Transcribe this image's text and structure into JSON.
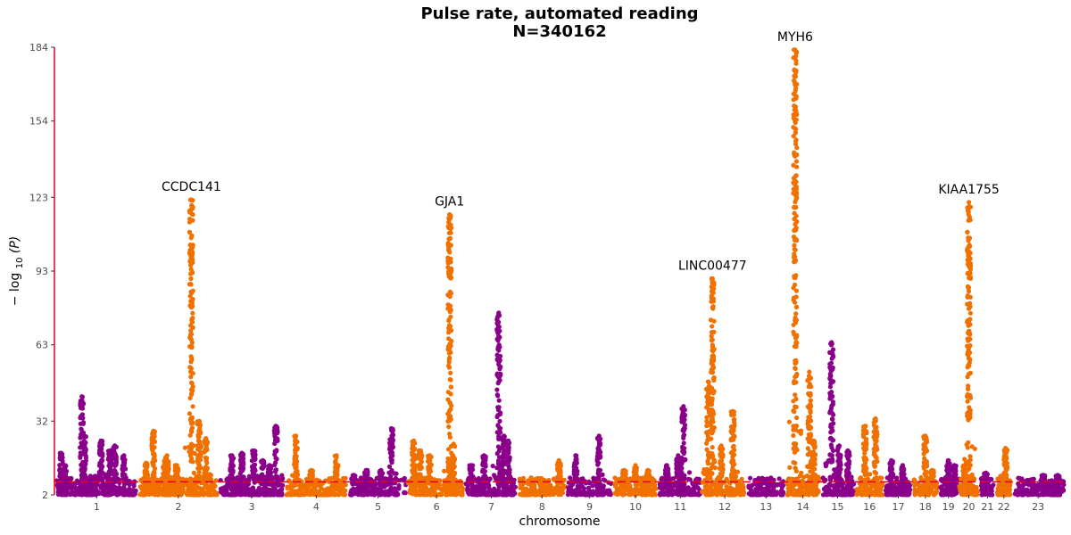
{
  "chart_data": {
    "type": "scatter",
    "subtype": "manhattan",
    "title": "Pulse rate, automated reading",
    "subtitle": "N=340162",
    "xlabel": "chromosome",
    "ylabel_main": "− log",
    "ylabel_sub": "10",
    "ylabel_arg": "(P)",
    "ylim": [
      2,
      184
    ],
    "yticks": [
      2,
      32,
      63,
      93,
      123,
      154,
      184
    ],
    "significance_threshold": 7.3,
    "colors": {
      "odd": "#8B008B",
      "even": "#F07000",
      "threshold": "#E8001C",
      "axis": "#E8001C"
    },
    "chromosomes": [
      {
        "label": "1",
        "length": 249,
        "peaks": [
          [
            0.07,
            19
          ],
          [
            0.12,
            14
          ],
          [
            0.32,
            42
          ],
          [
            0.35,
            26
          ],
          [
            0.55,
            24
          ],
          [
            0.66,
            20
          ],
          [
            0.72,
            22
          ],
          [
            0.83,
            18
          ]
        ]
      },
      {
        "label": "2",
        "length": 243,
        "peaks": [
          [
            0.1,
            15
          ],
          [
            0.19,
            28
          ],
          [
            0.33,
            16
          ],
          [
            0.36,
            18
          ],
          [
            0.48,
            14
          ],
          [
            0.66,
            122
          ],
          [
            0.76,
            32
          ],
          [
            0.84,
            25
          ]
        ]
      },
      {
        "label": "3",
        "length": 198,
        "peaks": [
          [
            0.2,
            18
          ],
          [
            0.35,
            19
          ],
          [
            0.53,
            20
          ],
          [
            0.67,
            16
          ],
          [
            0.77,
            14
          ],
          [
            0.87,
            30
          ]
        ]
      },
      {
        "label": "4",
        "length": 191,
        "peaks": [
          [
            0.18,
            26
          ],
          [
            0.42,
            12
          ],
          [
            0.82,
            18
          ]
        ]
      },
      {
        "label": "5",
        "length": 181,
        "peaks": [
          [
            0.1,
            10
          ],
          [
            0.3,
            12
          ],
          [
            0.55,
            12
          ],
          [
            0.72,
            29
          ]
        ]
      },
      {
        "label": "6",
        "length": 171,
        "peaks": [
          [
            0.1,
            24
          ],
          [
            0.22,
            20
          ],
          [
            0.38,
            18
          ],
          [
            0.73,
            116
          ],
          [
            0.79,
            18
          ]
        ]
      },
      {
        "label": "7",
        "length": 159,
        "peaks": [
          [
            0.12,
            14
          ],
          [
            0.36,
            18
          ],
          [
            0.64,
            76
          ],
          [
            0.74,
            26
          ],
          [
            0.82,
            24
          ]
        ]
      },
      {
        "label": "8",
        "length": 146,
        "peaks": [
          [
            0.25,
            8
          ],
          [
            0.55,
            8
          ],
          [
            0.85,
            16
          ]
        ]
      },
      {
        "label": "9",
        "length": 141,
        "peaks": [
          [
            0.2,
            18
          ],
          [
            0.7,
            26
          ]
        ]
      },
      {
        "label": "10",
        "length": 135,
        "peaks": [
          [
            0.25,
            12
          ],
          [
            0.5,
            14
          ],
          [
            0.78,
            12
          ]
        ]
      },
      {
        "label": "11",
        "length": 135,
        "peaks": [
          [
            0.2,
            14
          ],
          [
            0.45,
            18
          ],
          [
            0.57,
            38
          ]
        ]
      },
      {
        "label": "12",
        "length": 133,
        "peaks": [
          [
            0.12,
            48
          ],
          [
            0.22,
            90
          ],
          [
            0.42,
            22
          ],
          [
            0.68,
            36
          ]
        ]
      },
      {
        "label": "13",
        "length": 115,
        "peaks": [
          [
            0.25,
            8
          ],
          [
            0.55,
            8
          ]
        ]
      },
      {
        "label": "14",
        "length": 107,
        "peaks": [
          [
            0.28,
            183
          ],
          [
            0.68,
            52
          ],
          [
            0.8,
            24
          ]
        ]
      },
      {
        "label": "15",
        "length": 102,
        "peaks": [
          [
            0.32,
            64
          ],
          [
            0.55,
            22
          ],
          [
            0.8,
            20
          ]
        ]
      },
      {
        "label": "16",
        "length": 90,
        "peaks": [
          [
            0.35,
            30
          ],
          [
            0.7,
            33
          ]
        ]
      },
      {
        "label": "17",
        "length": 83,
        "peaks": [
          [
            0.25,
            16
          ],
          [
            0.66,
            14
          ]
        ]
      },
      {
        "label": "18",
        "length": 80,
        "peaks": [
          [
            0.5,
            26
          ],
          [
            0.75,
            12
          ]
        ]
      },
      {
        "label": "19",
        "length": 59,
        "peaks": [
          [
            0.5,
            16
          ],
          [
            0.8,
            14
          ]
        ]
      },
      {
        "label": "20",
        "length": 64,
        "peaks": [
          [
            0.5,
            121
          ],
          [
            0.3,
            14
          ]
        ]
      },
      {
        "label": "21",
        "length": 48,
        "peaks": [
          [
            0.4,
            11
          ]
        ]
      },
      {
        "label": "22",
        "length": 51,
        "peaks": [
          [
            0.6,
            21
          ]
        ]
      },
      {
        "label": "23",
        "length": 155,
        "peaks": [
          [
            0.3,
            8
          ],
          [
            0.6,
            10
          ],
          [
            0.88,
            10
          ]
        ]
      }
    ],
    "annotations": [
      {
        "label": "CCDC141",
        "chrom": "2",
        "x": 0.66,
        "y": 122
      },
      {
        "label": "GJA1",
        "chrom": "6",
        "x": 0.73,
        "y": 116
      },
      {
        "label": "LINC00477",
        "chrom": "12",
        "x": 0.22,
        "y": 90
      },
      {
        "label": "MYH6",
        "chrom": "14",
        "x": 0.28,
        "y": 183
      },
      {
        "label": "KIAA1755",
        "chrom": "20",
        "x": 0.5,
        "y": 121
      }
    ]
  }
}
